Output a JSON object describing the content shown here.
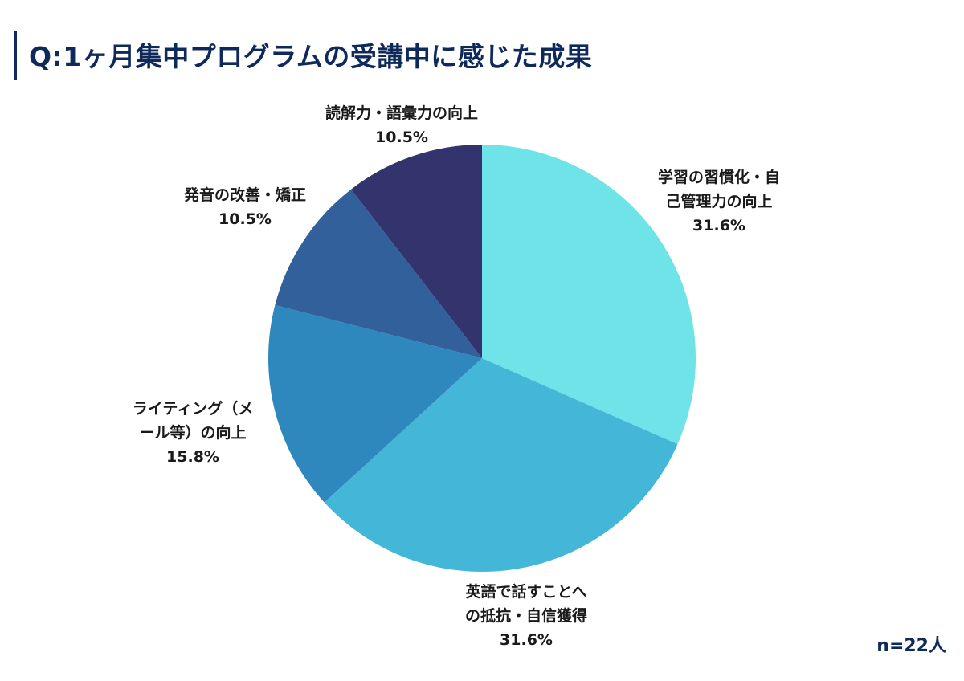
{
  "header": {
    "title": "Q:1ヶ月集中プログラムの受講中に感じた成果"
  },
  "footer": {
    "sample_size": "n=22人"
  },
  "colors": {
    "title": "#0f2a5a"
  },
  "labels": [
    {
      "line1": "学習の習慣化・自",
      "line2": "己管理力の向上",
      "value": "31.6%"
    },
    {
      "line1": "英語で話すことへ",
      "line2": "の抵抗・自信獲得",
      "value": "31.6%"
    },
    {
      "line1": "ライティング（メ",
      "line2": "ール等）の向上",
      "value": "15.8%"
    },
    {
      "line1": "発音の改善・矯正",
      "value": "10.5%"
    },
    {
      "line1": "読解力・語彙力の向上",
      "value": "10.5%"
    }
  ],
  "chart_data": {
    "type": "pie",
    "title": "Q:1ヶ月集中プログラムの受講中に感じた成果",
    "categories": [
      "学習の習慣化・自己管理力の向上",
      "英語で話すことへの抵抗・自信獲得",
      "ライティング（メール等）の向上",
      "発音の改善・矯正",
      "読解力・語彙力の向上"
    ],
    "values": [
      31.6,
      31.6,
      15.8,
      10.5,
      10.5
    ],
    "colors": [
      "#6EE3E8",
      "#44B6D7",
      "#2F88BD",
      "#31609B",
      "#33336E"
    ],
    "start_angle": "12 o'clock, clockwise",
    "annotations": [
      "n=22人"
    ],
    "legend": "none (direct labels)"
  }
}
